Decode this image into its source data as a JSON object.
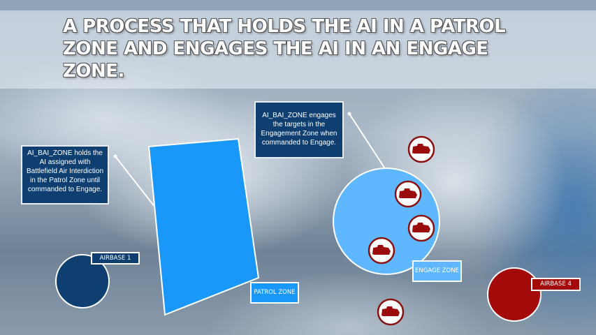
{
  "title": "A PROCESS THAT HOLDS THE AI IN A PATROL ZONE AND ENGAGES THE AI IN AN ENGAGE ZONE.",
  "callouts": {
    "patrol": "AI_BAI_ZONE holds the AI assigned with Battlefield Air Interdiction in the Patrol Zone until commanded to Engage.",
    "engage": "AI_BAI_ZONE engages the targets in the Engagement Zone when commanded to Engage."
  },
  "labels": {
    "airbase1": "AIRBASE 1",
    "patrol_zone": "PATROL ZONE",
    "engage_zone": "ENGAGE ZONE",
    "airbase4": "AIRBASE 4"
  },
  "colors": {
    "patrol": "#1a98fa",
    "engage": "#5fb8ff",
    "blue_base": "#0f3f70",
    "red": "#a30b0b"
  },
  "icons": {
    "target": "tank-icon"
  }
}
